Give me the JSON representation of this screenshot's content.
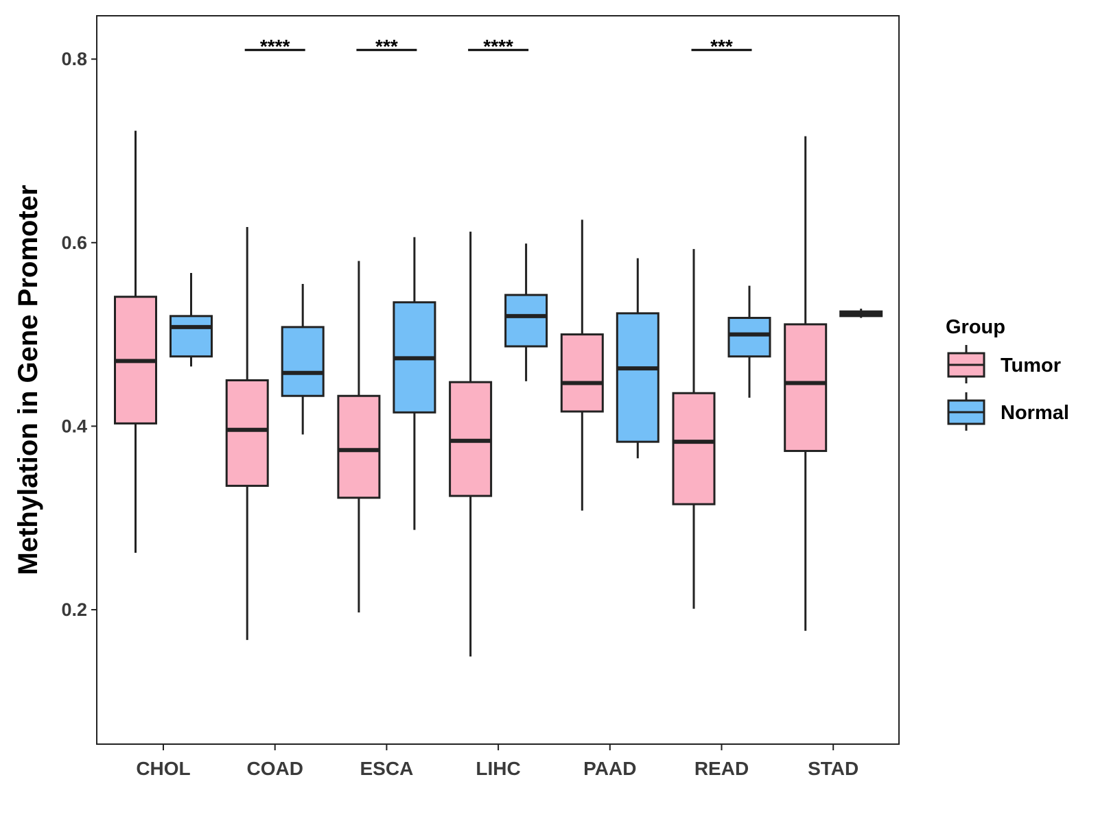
{
  "chart_data": {
    "type": "boxplot",
    "title": "",
    "xlabel": "",
    "ylabel": "Methylation in Gene Promoter",
    "ylim": [
      0.07,
      0.85
    ],
    "yticks": [
      0.2,
      0.4,
      0.6,
      0.8
    ],
    "ytick_labels": [
      "0.2",
      "0.4",
      "0.6",
      "0.8"
    ],
    "categories": [
      "CHOL",
      "COAD",
      "ESCA",
      "LIHC",
      "PAAD",
      "READ",
      "STAD"
    ],
    "legend": {
      "title": "Group",
      "position": "right",
      "entries": [
        {
          "name": "Tumor",
          "color": "#fbb1c3"
        },
        {
          "name": "Normal",
          "color": "#74bff7"
        }
      ]
    },
    "series": [
      {
        "name": "Tumor",
        "color": "#fbb1c3",
        "boxes": [
          {
            "category": "CHOL",
            "min": 0.262,
            "q1": 0.403,
            "median": 0.471,
            "q3": 0.541,
            "max": 0.722
          },
          {
            "category": "COAD",
            "min": 0.167,
            "q1": 0.335,
            "median": 0.396,
            "q3": 0.45,
            "max": 0.617
          },
          {
            "category": "ESCA",
            "min": 0.197,
            "q1": 0.322,
            "median": 0.374,
            "q3": 0.433,
            "max": 0.58
          },
          {
            "category": "LIHC",
            "min": 0.149,
            "q1": 0.324,
            "median": 0.384,
            "q3": 0.448,
            "max": 0.612
          },
          {
            "category": "PAAD",
            "min": 0.308,
            "q1": 0.416,
            "median": 0.447,
            "q3": 0.5,
            "max": 0.625
          },
          {
            "category": "READ",
            "min": 0.201,
            "q1": 0.315,
            "median": 0.383,
            "q3": 0.436,
            "max": 0.593
          },
          {
            "category": "STAD",
            "min": 0.177,
            "q1": 0.373,
            "median": 0.447,
            "q3": 0.511,
            "max": 0.716
          }
        ]
      },
      {
        "name": "Normal",
        "color": "#74bff7",
        "boxes": [
          {
            "category": "CHOL",
            "min": 0.465,
            "q1": 0.476,
            "median": 0.508,
            "q3": 0.52,
            "max": 0.567
          },
          {
            "category": "COAD",
            "min": 0.391,
            "q1": 0.433,
            "median": 0.458,
            "q3": 0.508,
            "max": 0.555
          },
          {
            "category": "ESCA",
            "min": 0.287,
            "q1": 0.415,
            "median": 0.474,
            "q3": 0.535,
            "max": 0.606
          },
          {
            "category": "LIHC",
            "min": 0.449,
            "q1": 0.487,
            "median": 0.52,
            "q3": 0.543,
            "max": 0.599
          },
          {
            "category": "PAAD",
            "min": 0.365,
            "q1": 0.383,
            "median": 0.463,
            "q3": 0.523,
            "max": 0.583
          },
          {
            "category": "READ",
            "min": 0.431,
            "q1": 0.476,
            "median": 0.5,
            "q3": 0.518,
            "max": 0.553
          },
          {
            "category": "STAD",
            "min": 0.518,
            "q1": 0.52,
            "median": 0.523,
            "q3": 0.525,
            "max": 0.528
          }
        ]
      }
    ],
    "annotations": [
      {
        "category": "COAD",
        "label": "****",
        "y": 0.81
      },
      {
        "category": "ESCA",
        "label": "***",
        "y": 0.81
      },
      {
        "category": "LIHC",
        "label": "****",
        "y": 0.81
      },
      {
        "category": "READ",
        "label": "***",
        "y": 0.81
      }
    ]
  }
}
